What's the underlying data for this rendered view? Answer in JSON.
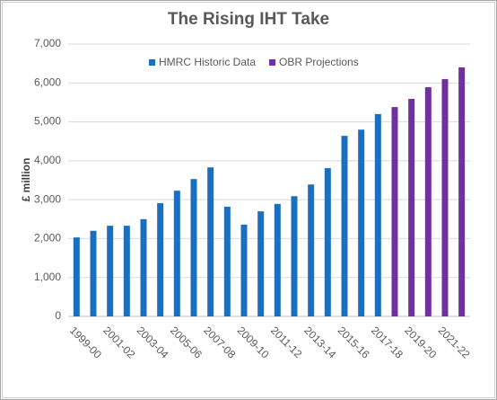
{
  "chart_data": {
    "type": "bar",
    "title": "The Rising IHT Take",
    "y_label": "£ million",
    "categories": [
      "1999-00",
      null,
      "2001-02",
      null,
      "2003-04",
      null,
      "2005-06",
      null,
      "2007-08",
      null,
      "2009-10",
      null,
      "2011-12",
      null,
      "2013-14",
      null,
      "2015-16",
      null,
      "2017-18",
      null,
      "2019-20",
      null,
      "2021-22",
      null
    ],
    "series": [
      {
        "name": "HMRC Historic Data",
        "color": "#1a6fbf",
        "values": [
          2030,
          2200,
          2330,
          2330,
          2500,
          2910,
          3230,
          3530,
          3830,
          2820,
          2360,
          2700,
          2890,
          3090,
          3390,
          3810,
          4640,
          4800,
          5200,
          null,
          null,
          null,
          null,
          null
        ]
      },
      {
        "name": "OBR Projections",
        "color": "#7030a0",
        "values": [
          null,
          null,
          null,
          null,
          null,
          null,
          null,
          null,
          null,
          null,
          null,
          null,
          null,
          null,
          null,
          null,
          null,
          null,
          null,
          5380,
          5590,
          5890,
          6100,
          6400
        ]
      }
    ],
    "ylim": [
      0,
      7000
    ],
    "yticks": [
      0,
      {
        "value": 1000,
        "label": "1,000"
      },
      {
        "value": 2000,
        "label": "2,000"
      },
      {
        "value": 3000,
        "label": "3,000"
      },
      {
        "value": 4000,
        "label": "4,000"
      },
      {
        "value": 5000,
        "label": "5,000"
      },
      {
        "value": 6000,
        "label": "6,000"
      },
      {
        "value": 7000,
        "label": "7,000"
      }
    ],
    "grid": true,
    "legend": "top"
  }
}
